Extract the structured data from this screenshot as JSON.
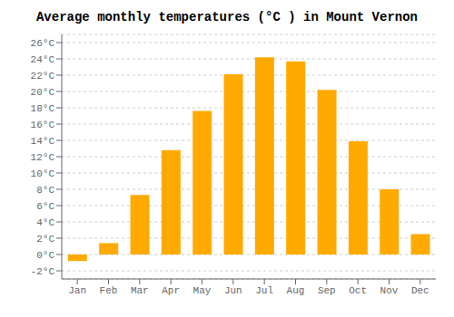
{
  "chart_data": {
    "type": "bar",
    "title": "Average monthly temperatures (°C ) in Mount Vernon",
    "categories": [
      "Jan",
      "Feb",
      "Mar",
      "Apr",
      "May",
      "Jun",
      "Jul",
      "Aug",
      "Sep",
      "Oct",
      "Nov",
      "Dec"
    ],
    "values": [
      -0.8,
      1.4,
      7.3,
      12.8,
      17.6,
      22.1,
      24.2,
      23.7,
      20.2,
      13.9,
      8.0,
      2.5
    ],
    "color": "#FFAA00",
    "ylim": [
      -3,
      27
    ],
    "yticks": [
      {
        "value": -2,
        "label": "-2°C"
      },
      {
        "value": 0,
        "label": "0°C"
      },
      {
        "value": 2,
        "label": "2°C"
      },
      {
        "value": 4,
        "label": "4°C"
      },
      {
        "value": 6,
        "label": "6°C"
      },
      {
        "value": 8,
        "label": "8°C"
      },
      {
        "value": 10,
        "label": "10°C"
      },
      {
        "value": 12,
        "label": "12°C"
      },
      {
        "value": 14,
        "label": "14°C"
      },
      {
        "value": 16,
        "label": "16°C"
      },
      {
        "value": 18,
        "label": "18°C"
      },
      {
        "value": 20,
        "label": "20°C"
      },
      {
        "value": 22,
        "label": "22°C"
      },
      {
        "value": 24,
        "label": "24°C"
      },
      {
        "value": 26,
        "label": "26°C"
      }
    ],
    "grid": true
  }
}
